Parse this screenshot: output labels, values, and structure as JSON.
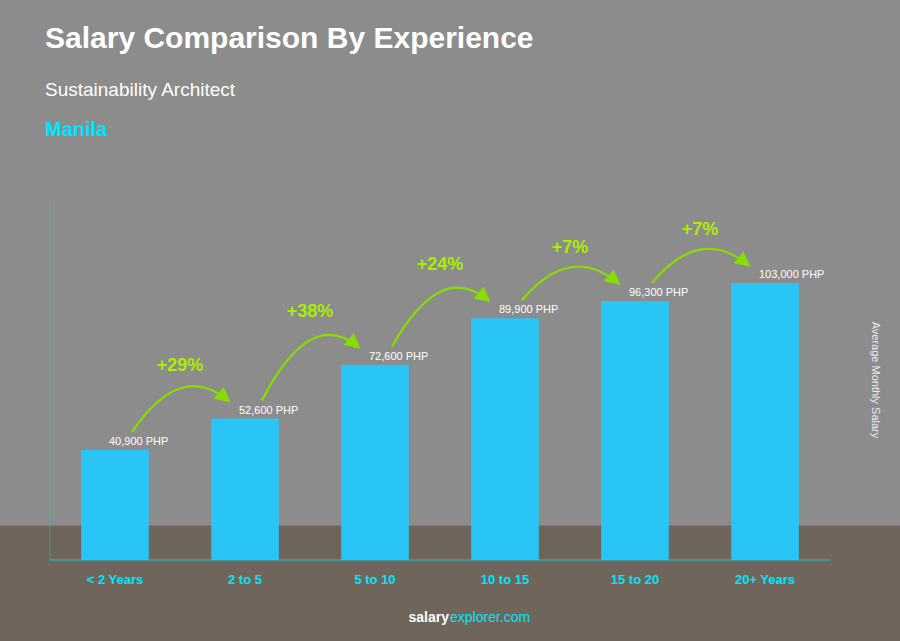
{
  "chart_data": {
    "type": "bar",
    "title": "Salary Comparison By Experience",
    "subtitle": "Sustainability Architect",
    "city": "Manila",
    "ylabel": "Average Monthly Salary",
    "footer": [
      "salary",
      "explorer.com"
    ],
    "categories": [
      "< 2 Years",
      "2 to 5",
      "5 to 10",
      "10 to 15",
      "15 to 20",
      "20+ Years"
    ],
    "values": [
      40900,
      52600,
      72600,
      89900,
      96300,
      103000
    ],
    "value_labels": [
      "40,900 PHP",
      "52,600 PHP",
      "72,600 PHP",
      "89,900 PHP",
      "96,300 PHP",
      "103,000 PHP"
    ],
    "annotations": [
      "+29%",
      "+38%",
      "+24%",
      "+7%",
      "+7%"
    ],
    "color": "#29C5F6",
    "ylim": [
      0,
      133900
    ],
    "data_labels": true,
    "tick_labels": "x",
    "grid": false
  }
}
